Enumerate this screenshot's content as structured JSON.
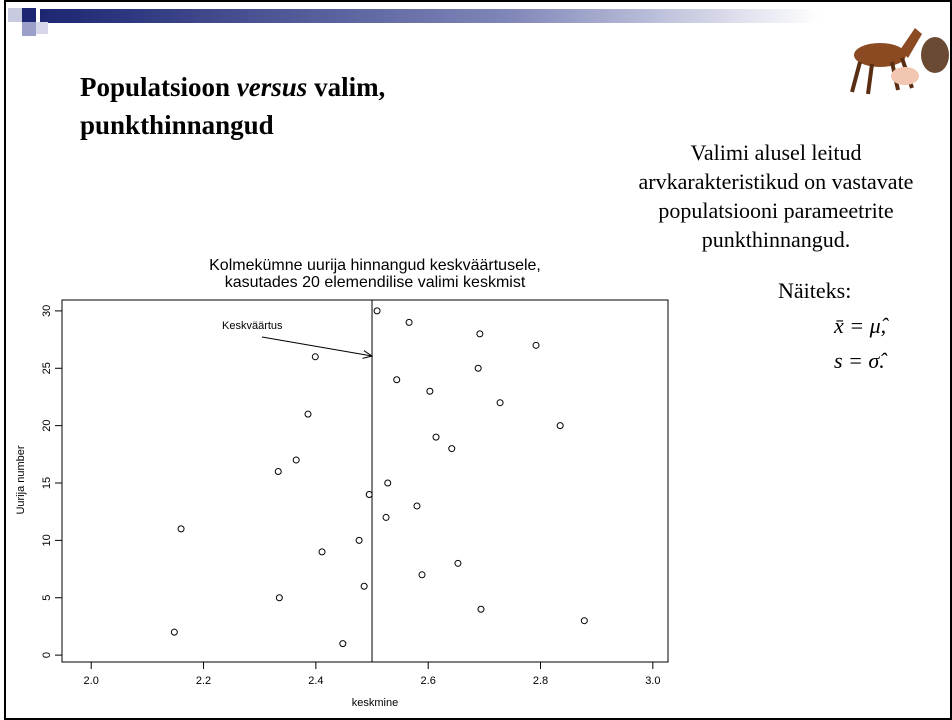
{
  "slide": {
    "title_parts": [
      "Populatsioon",
      "versus",
      "valim,"
    ],
    "title_line2": "punkthinnangud",
    "text_lines": [
      "Valimi alusel leitud",
      "arvkarakteristikud on vastavate",
      "populatsiooni parameetrite",
      "punkthinnangud."
    ],
    "example_label": "Näiteks:",
    "formulas": [
      "x̄ = μ̂,",
      "s = σ̂."
    ]
  },
  "chart_data": {
    "type": "scatter",
    "title": [
      "Kolmekümne uurija hinnangud keskväärtusele,",
      "kasutades 20 elemendilise valimi keskmist"
    ],
    "xlabel": "keskmine",
    "ylabel": "Uurija number",
    "x": [
      2.448,
      2.148,
      2.878,
      2.694,
      2.335,
      2.486,
      2.589,
      2.653,
      2.411,
      2.477,
      2.16,
      2.525,
      2.58,
      2.495,
      2.528,
      2.333,
      2.365,
      2.642,
      2.614,
      2.835,
      2.386,
      2.728,
      2.603,
      2.544,
      2.689,
      2.399,
      2.792,
      2.692,
      2.566,
      2.509
    ],
    "values": [
      1,
      2,
      3,
      4,
      5,
      6,
      7,
      8,
      9,
      10,
      11,
      12,
      13,
      14,
      15,
      16,
      17,
      18,
      19,
      20,
      21,
      22,
      23,
      24,
      25,
      26,
      27,
      28,
      29,
      30
    ],
    "color": "#000000",
    "vline": 2.5,
    "annotation": "Keskväärtus",
    "xlim": [
      1.948,
      3.027
    ],
    "ylim": [
      -0.6,
      30.95
    ],
    "xticks": [
      {
        "value": 2,
        "label": "2.0"
      },
      2.2,
      2.4,
      2.6,
      2.8,
      {
        "value": 3,
        "label": "3.0"
      }
    ],
    "yticks": [
      0,
      5,
      10,
      15,
      20,
      25,
      30
    ],
    "grid": false
  }
}
